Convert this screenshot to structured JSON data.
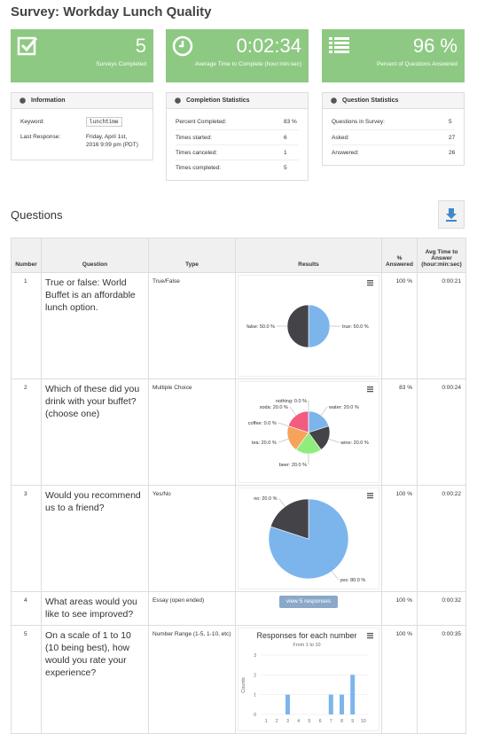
{
  "header": {
    "title": "Survey: Workday Lunch Quality"
  },
  "stats": [
    {
      "value": "5",
      "label": "Surveys Completed"
    },
    {
      "value": "0:02:34",
      "label": "Average Time to Complete (hour:min:sec)"
    },
    {
      "value": "96 %",
      "label": "Percent of Questions Answered"
    }
  ],
  "panels": [
    {
      "title": "Information",
      "rows": [
        [
          "Keyword:",
          "lunchtime"
        ],
        [
          "Last Response:",
          "Friday, April 1st, 2016 9:09 pm (PDT)"
        ]
      ]
    },
    {
      "title": "Completion Statistics",
      "rows": [
        [
          "Percent Completed:",
          "83 %"
        ],
        [
          "Times started:",
          "6"
        ],
        [
          "Times canceled:",
          "1"
        ],
        [
          "Times completed:",
          "5"
        ]
      ]
    },
    {
      "title": "Question Statistics",
      "rows": [
        [
          "Questions in Survey:",
          "5"
        ],
        [
          "Asked:",
          "27"
        ],
        [
          "Answered:",
          "26"
        ]
      ]
    }
  ],
  "questions": {
    "title": "Questions"
  },
  "table": {
    "headers": [
      "Number",
      "Question",
      "Type",
      "Results",
      "% Answered",
      "Avg Time to Answer (hour:min:sec)"
    ],
    "rows": [
      {
        "number": "1",
        "question": "True or false: World Buffet is an affordable lunch option.",
        "type": "True/False",
        "results": {
          "type": "pie",
          "values": [
            50,
            50
          ],
          "value_labels": [
            "true: 50.0 %",
            "false: 50.0 %"
          ],
          "colors": [
            "#7cb5ec",
            "#434348"
          ]
        },
        "answered": "100 %",
        "time": "0:00:21"
      },
      {
        "number": "2",
        "question": "Which of these did you drink with your buffet? (choose one)",
        "type": "Multiple Choice",
        "results": {
          "type": "pie",
          "values": [
            20,
            20,
            20,
            20,
            0,
            20,
            0
          ],
          "value_labels": [
            "water: 20.0 %",
            "wine: 20.0 %",
            "beer: 20.0 %",
            "tea: 20.0 %",
            "coffee: 0.0 %",
            "soda: 20.0 %",
            "nothing: 0.0 %"
          ],
          "colors": [
            "#7cb5ec",
            "#434348",
            "#90ed7d",
            "#f7a35c",
            "#8085e9",
            "#f15c80",
            "#e4d354"
          ]
        },
        "answered": "83 %",
        "time": "0:00:24"
      },
      {
        "number": "3",
        "question": "Would you recommend us to a friend?",
        "type": "Yes/No",
        "results": {
          "type": "pie",
          "values": [
            80,
            20
          ],
          "value_labels": [
            "yes: 80.0 %",
            "no: 20.0 %"
          ],
          "colors": [
            "#7cb5ec",
            "#434348"
          ]
        },
        "answered": "100 %",
        "time": "0:00:22"
      },
      {
        "number": "4",
        "question": "What areas would you like to see improved?",
        "type": "Essay (open ended)",
        "results": {
          "button": "view 5 responses"
        },
        "answered": "100 %",
        "time": "0:00:32"
      },
      {
        "number": "5",
        "question": "On a scale of 1 to 10 (10 being best), how would you rate your experience?",
        "type": "Number Range (1-5, 1-10, etc)",
        "results": {
          "type": "bar",
          "title": "Responses for each number",
          "subtitle": "From 1 to 10",
          "ylabel": "Counts",
          "categories": [
            "1",
            "2",
            "3",
            "4",
            "5",
            "6",
            "7",
            "8",
            "9",
            "10"
          ],
          "values": [
            0,
            0,
            1,
            0,
            0,
            0,
            1,
            1,
            2,
            0
          ],
          "ylim": [
            0,
            3
          ],
          "yticks": [
            0,
            1,
            2,
            3
          ],
          "grid": true,
          "color": "#7cb5ec"
        },
        "answered": "100 %",
        "time": "0:00:35"
      }
    ]
  }
}
